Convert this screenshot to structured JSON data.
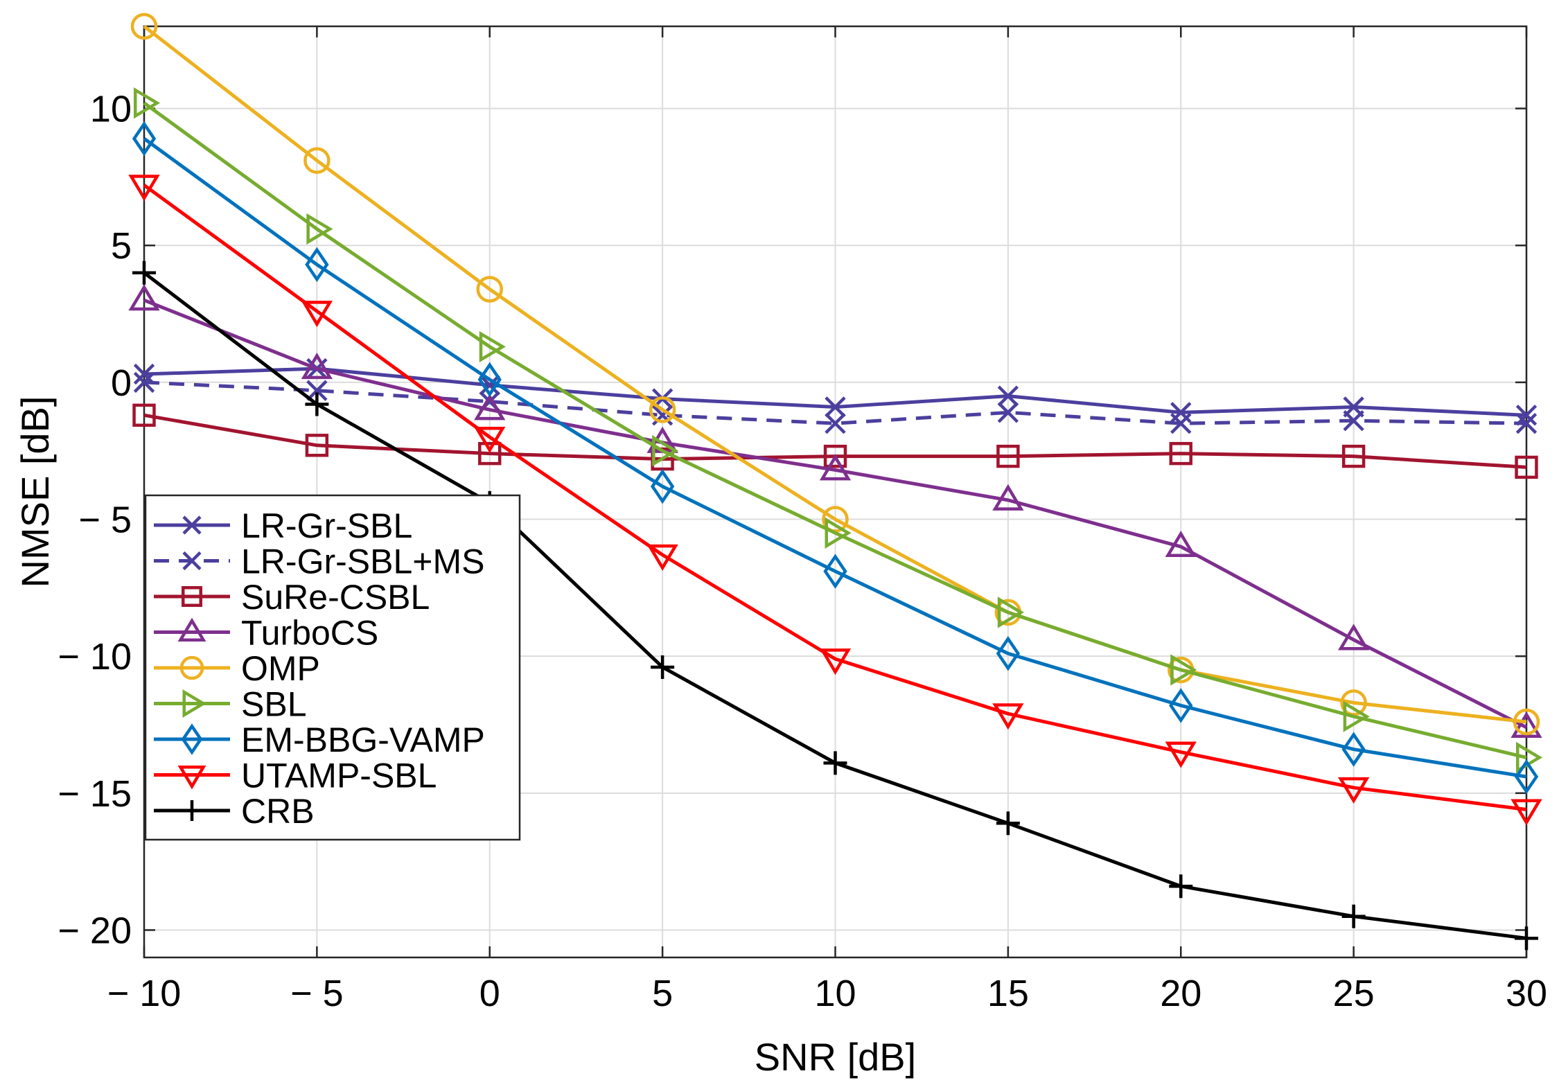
{
  "chart_data": {
    "type": "line",
    "title": "",
    "xlabel": "SNR [dB]",
    "ylabel": "NMSE [dB]",
    "xlim": [
      -10,
      30
    ],
    "ylim": [
      -21,
      13
    ],
    "xticks": [
      -10,
      -5,
      0,
      5,
      10,
      15,
      20,
      25,
      30
    ],
    "yticks": [
      -20,
      -15,
      -10,
      -5,
      0,
      5,
      10
    ],
    "xtick_labels": [
      "− 10",
      "− 5",
      "0",
      "5",
      "10",
      "15",
      "20",
      "25",
      "30"
    ],
    "ytick_labels": [
      "− 20",
      "− 15",
      "− 10",
      "− 5",
      "0",
      "5",
      "10"
    ],
    "grid": true,
    "legend_position": "bottom-left",
    "x": [
      -10,
      -5,
      0,
      5,
      10,
      15,
      20,
      25,
      30
    ],
    "series": [
      {
        "name": "LR-Gr-SBL",
        "color": "#4b3f9e",
        "marker": "x",
        "dash": "solid",
        "values": [
          0.3,
          0.5,
          -0.1,
          -0.6,
          -0.9,
          -0.5,
          -1.1,
          -0.9,
          -1.2
        ]
      },
      {
        "name": "LR-Gr-SBL+MS",
        "color": "#4b3f9e",
        "marker": "x",
        "dash": "dashed",
        "values": [
          0.0,
          -0.3,
          -0.7,
          -1.2,
          -1.5,
          -1.1,
          -1.5,
          -1.4,
          -1.5
        ]
      },
      {
        "name": "SuRe-CSBL",
        "color": "#a2142f",
        "marker": "square",
        "dash": "solid",
        "values": [
          -1.2,
          -2.3,
          -2.6,
          -2.8,
          -2.7,
          -2.7,
          -2.6,
          -2.7,
          -3.1
        ]
      },
      {
        "name": "TurboCS",
        "color": "#7e2f8e",
        "marker": "triangle-up",
        "dash": "solid",
        "values": [
          3.0,
          0.5,
          -1.0,
          -2.2,
          -3.2,
          -4.3,
          -6.0,
          -9.4,
          -12.6
        ]
      },
      {
        "name": "OMP",
        "color": "#edb120",
        "marker": "circle",
        "dash": "solid",
        "values": [
          13.0,
          8.1,
          3.4,
          -1.0,
          -5.0,
          -8.4,
          -10.5,
          -11.7,
          -12.4
        ]
      },
      {
        "name": "SBL",
        "color": "#77ac30",
        "marker": "triangle-right",
        "dash": "solid",
        "values": [
          10.2,
          5.6,
          1.3,
          -2.5,
          -5.5,
          -8.4,
          -10.5,
          -12.2,
          -13.7
        ]
      },
      {
        "name": "EM-BBG-VAMP",
        "color": "#0072bd",
        "marker": "diamond",
        "dash": "solid",
        "values": [
          8.9,
          4.3,
          0.1,
          -3.8,
          -6.9,
          -9.9,
          -11.8,
          -13.4,
          -14.4
        ]
      },
      {
        "name": "UTAMP-SBL",
        "color": "#ff0000",
        "marker": "triangle-down",
        "dash": "solid",
        "values": [
          7.2,
          2.6,
          -2.0,
          -6.3,
          -10.1,
          -12.1,
          -13.5,
          -14.8,
          -15.6
        ]
      },
      {
        "name": "CRB",
        "color": "#000000",
        "marker": "plus",
        "dash": "solid",
        "values": [
          4.0,
          -0.8,
          -4.4,
          -10.4,
          -13.9,
          -16.1,
          -18.4,
          -19.5,
          -20.3
        ]
      }
    ]
  }
}
